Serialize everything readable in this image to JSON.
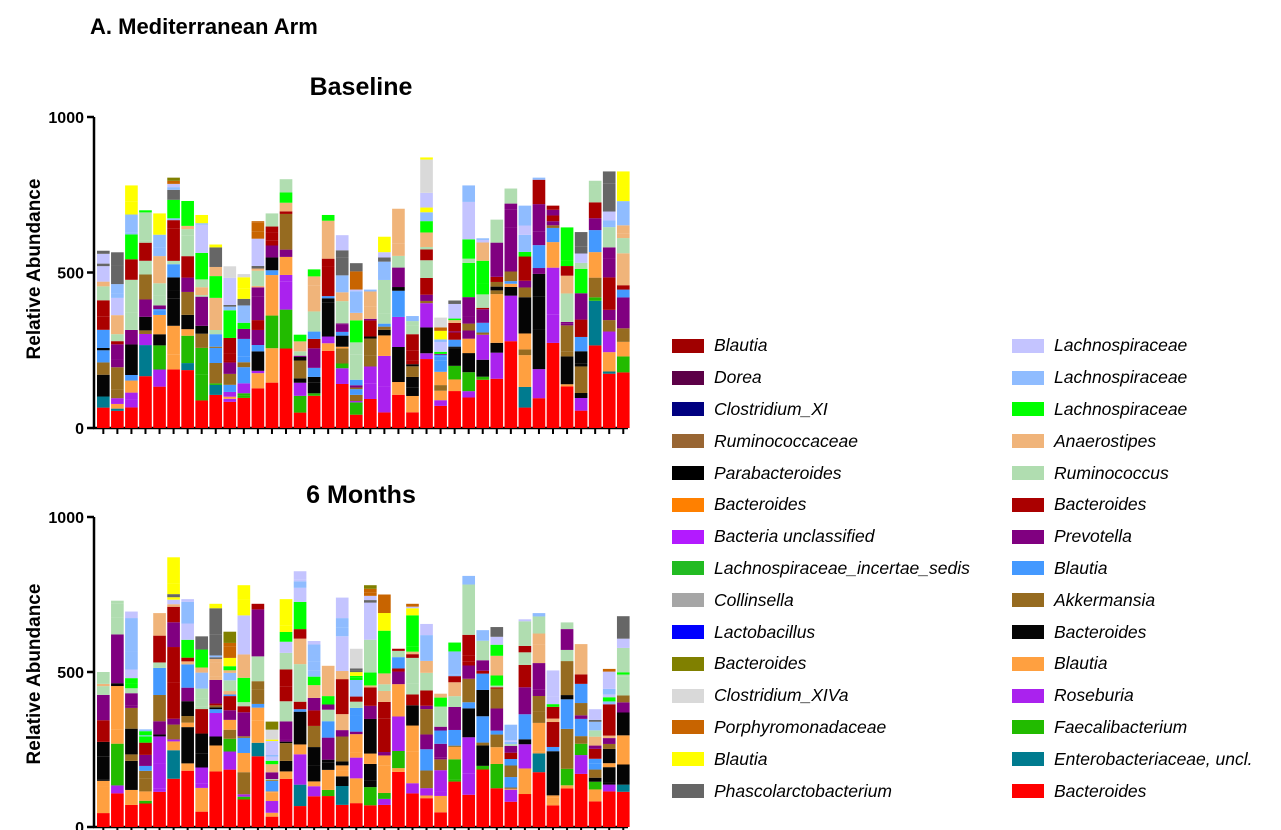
{
  "figure_label": "A. Mediterranean Arm",
  "legend_left": [
    {
      "label": "Blautia",
      "color": "#a00000"
    },
    {
      "label": "Dorea",
      "color": "#5c0047"
    },
    {
      "label": "Clostridium_XI",
      "color": "#000080"
    },
    {
      "label": "Ruminococcaceae",
      "color": "#996633"
    },
    {
      "label": "Parabacteroides",
      "color": "#000000"
    },
    {
      "label": "Bacteroides",
      "color": "#ff8000"
    },
    {
      "label": "Bacteria unclassified",
      "color": "#b31aff"
    },
    {
      "label": "Lachnospiraceae_incertae_sedis",
      "color": "#22bb22"
    },
    {
      "label": "Collinsella",
      "color": "#a6a6a6"
    },
    {
      "label": "Lactobacillus",
      "color": "#0000ff"
    },
    {
      "label": "Bacteroides",
      "color": "#808000"
    },
    {
      "label": "Clostridium_XIVa",
      "color": "#d9d9d9"
    },
    {
      "label": "Porphyromonadaceae",
      "color": "#c86400"
    },
    {
      "label": "Blautia",
      "color": "#ffff00"
    },
    {
      "label": "Phascolarctobacterium",
      "color": "#666666"
    }
  ],
  "legend_right": [
    {
      "label": "Lachnospiraceae",
      "color": "#c4c4ff"
    },
    {
      "label": "Lachnospiraceae",
      "color": "#8fbcff"
    },
    {
      "label": "Lachnospiraceae",
      "color": "#00ff00"
    },
    {
      "label": "Anaerostipes",
      "color": "#f0b47a"
    },
    {
      "label": "Ruminococcus",
      "color": "#b0ddb0"
    },
    {
      "label": "Bacteroides",
      "color": "#aa0000"
    },
    {
      "label": "Prevotella",
      "color": "#800080"
    },
    {
      "label": "Blautia",
      "color": "#4499ff"
    },
    {
      "label": "Akkermansia",
      "color": "#966b20"
    },
    {
      "label": "Bacteroides",
      "color": "#050505"
    },
    {
      "label": "Blautia",
      "color": "#ffa040"
    },
    {
      "label": "Roseburia",
      "color": "#aa22ee"
    },
    {
      "label": "Faecalibacterium",
      "color": "#22bb00"
    },
    {
      "label": "Enterobacteriaceae, uncl.",
      "color": "#007b8f"
    },
    {
      "label": "Bacteroides",
      "color": "#ff0000"
    }
  ],
  "chart_data": [
    {
      "type": "bar",
      "stacked": true,
      "title": "Baseline",
      "ylabel": "Relative Abundance",
      "xlabel": "",
      "ylim": [
        0,
        1000
      ],
      "yticks": [
        "0",
        "500",
        "1000"
      ],
      "num_samples": 38,
      "totals": [
        570,
        565,
        780,
        700,
        690,
        805,
        730,
        685,
        590,
        520,
        495,
        665,
        690,
        800,
        300,
        510,
        685,
        620,
        530,
        445,
        615,
        705,
        360,
        870,
        355,
        410,
        780,
        610,
        670,
        770,
        715,
        805,
        715,
        645,
        630,
        795,
        825,
        825
      ]
    },
    {
      "type": "bar",
      "stacked": true,
      "title": "6 Months",
      "ylabel": "Relative Abundance",
      "xlabel": "",
      "ylim": [
        0,
        1000
      ],
      "yticks": [
        "0",
        "500",
        "1000"
      ],
      "num_samples": 38,
      "totals": [
        500,
        730,
        695,
        315,
        690,
        870,
        735,
        615,
        720,
        630,
        780,
        720,
        340,
        735,
        825,
        600,
        520,
        740,
        575,
        780,
        750,
        575,
        720,
        655,
        430,
        595,
        810,
        635,
        645,
        330,
        670,
        690,
        505,
        660,
        590,
        380,
        510,
        680
      ]
    }
  ]
}
